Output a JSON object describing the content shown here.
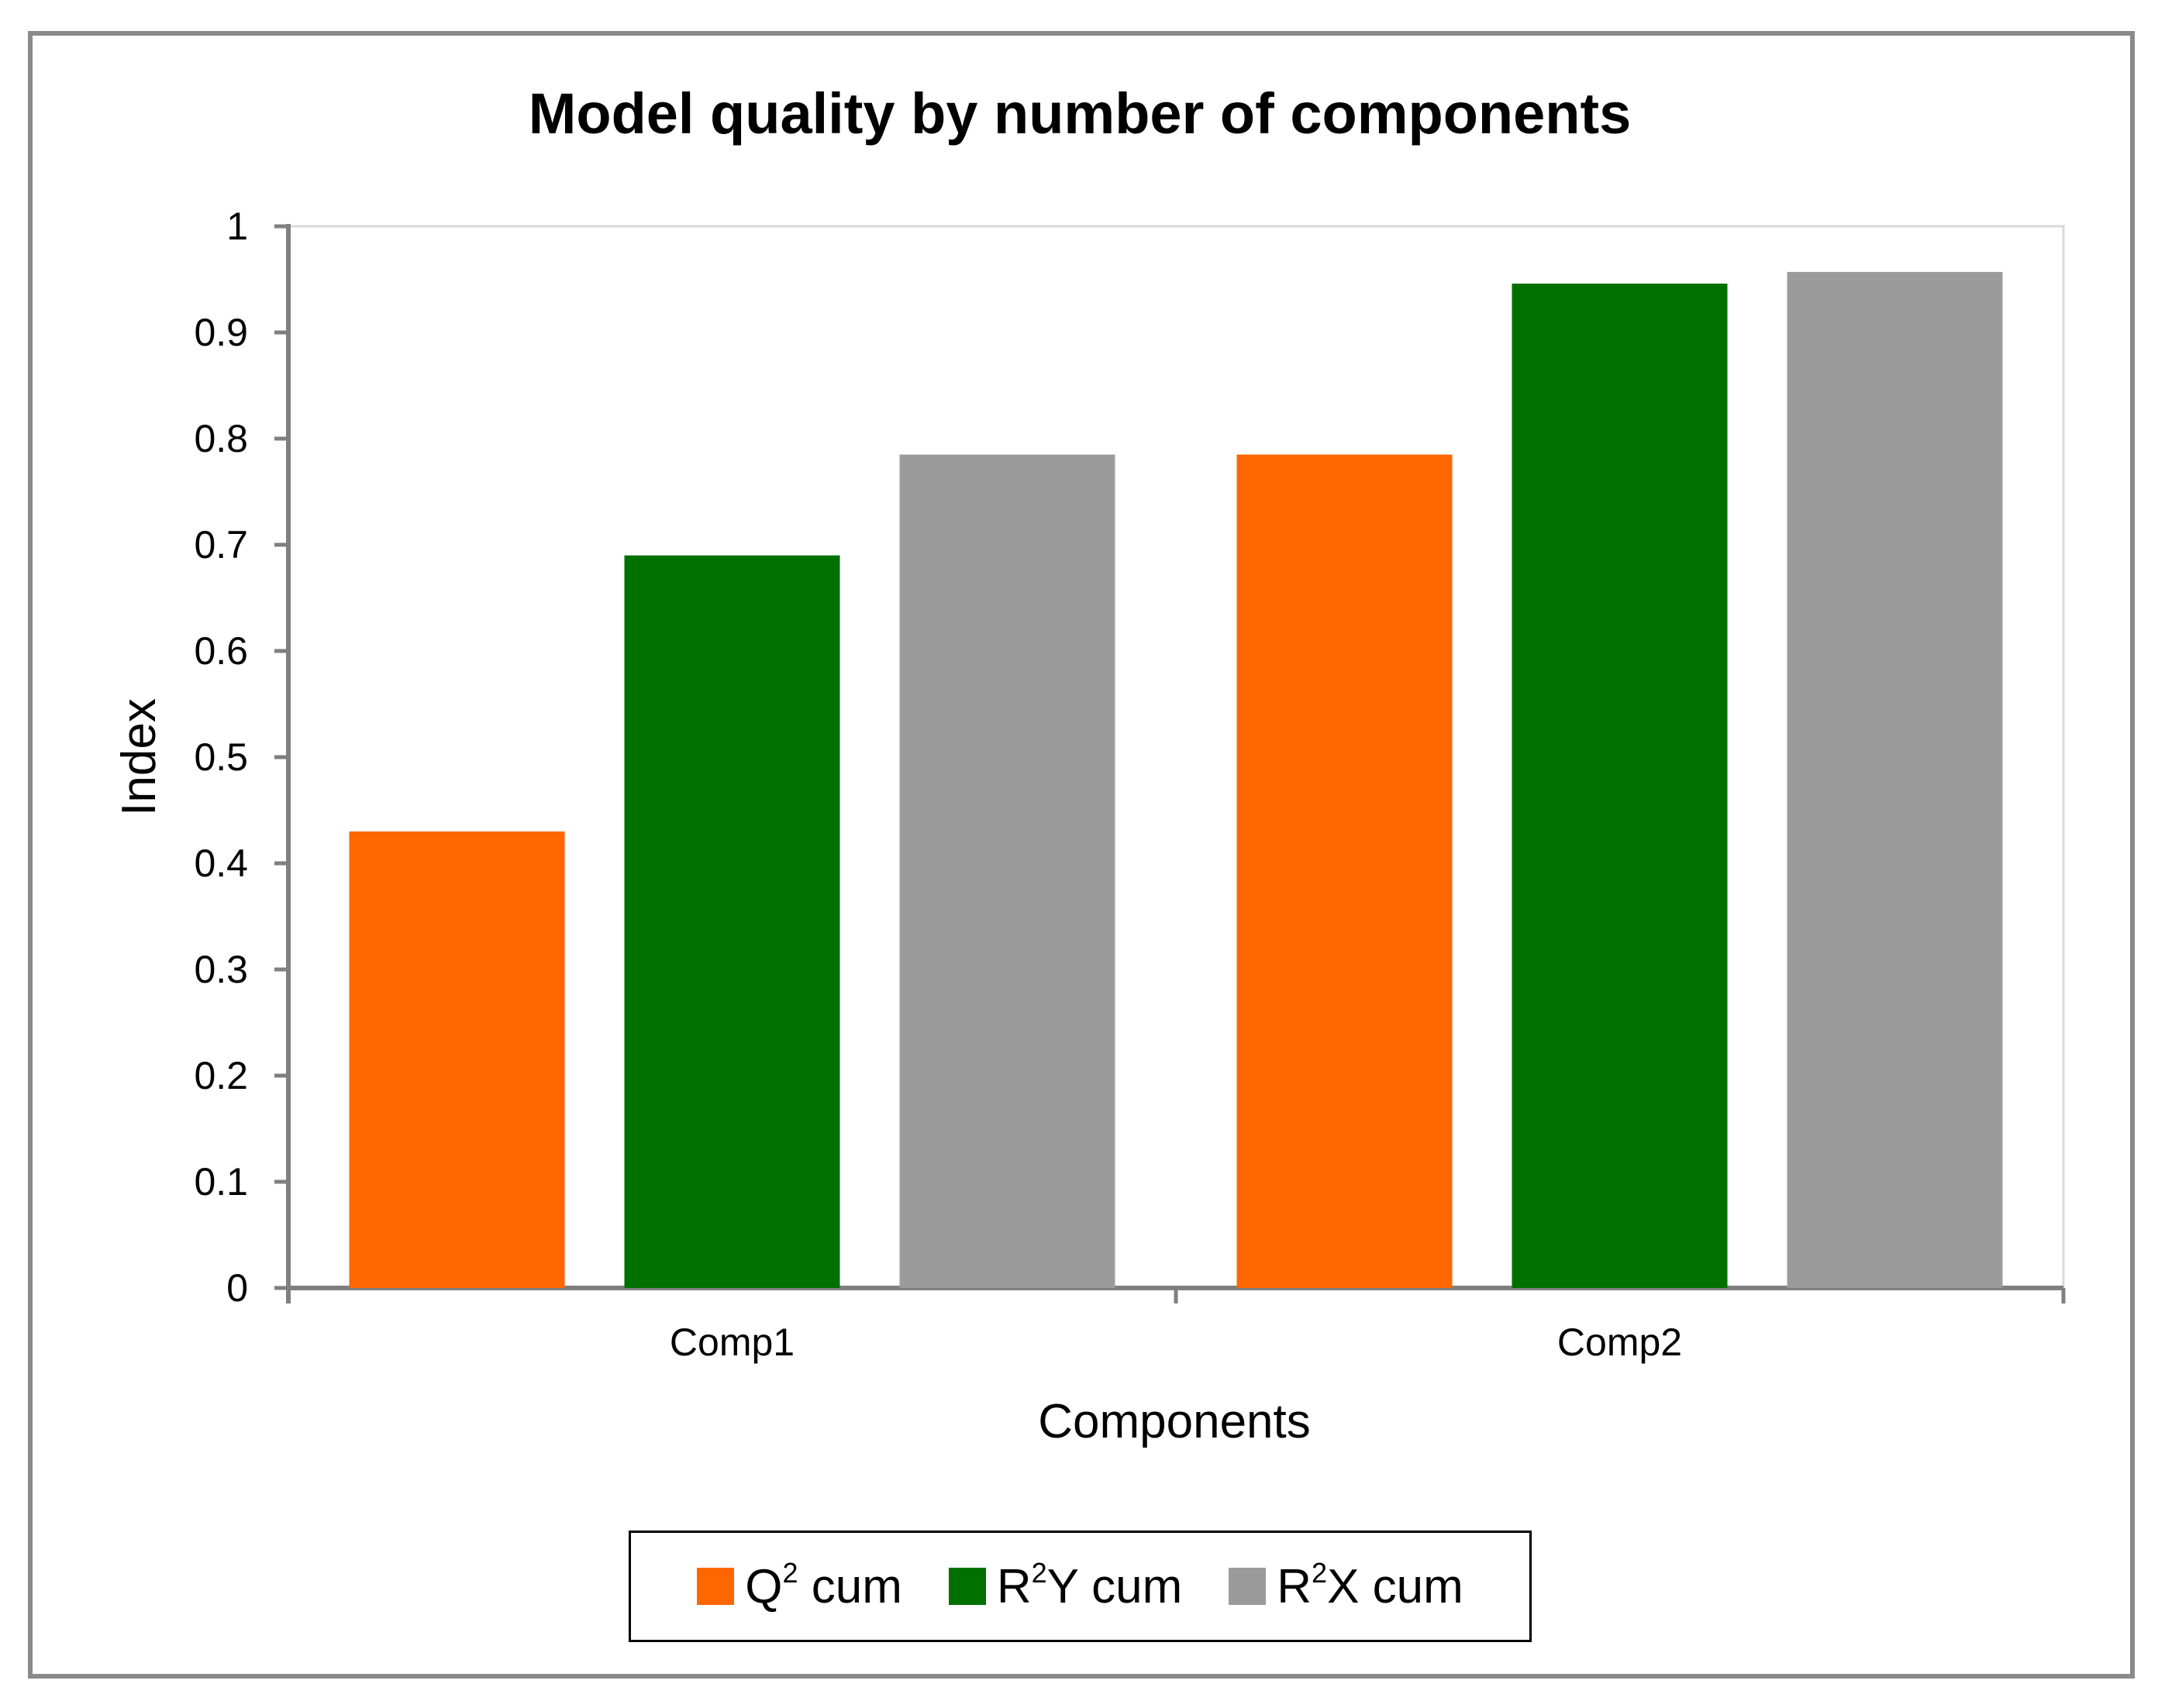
{
  "chart_data": {
    "type": "bar",
    "title": "Model quality by number of components",
    "xlabel": "Components",
    "ylabel": "Index",
    "categories": [
      "Comp1",
      "Comp2"
    ],
    "ylim": [
      0,
      1
    ],
    "yticks": [
      "0",
      "0.1",
      "0.2",
      "0.3",
      "0.4",
      "0.5",
      "0.6",
      "0.7",
      "0.8",
      "0.9",
      "1"
    ],
    "grid": false,
    "legend_position": "bottom",
    "series": [
      {
        "name": "Q² cum",
        "base": "Q",
        "sup": "2",
        "suffix": " cum",
        "color": "#ff6600",
        "values": [
          0.43,
          0.785
        ]
      },
      {
        "name": "R²Y cum",
        "base": "R",
        "sup": "2",
        "suffix": "Y cum",
        "color": "#007000",
        "values": [
          0.69,
          0.946
        ]
      },
      {
        "name": "R²X cum",
        "base": "R",
        "sup": "2",
        "suffix": "X cum",
        "color": "#9b9b9b",
        "values": [
          0.785,
          0.957
        ]
      }
    ]
  }
}
